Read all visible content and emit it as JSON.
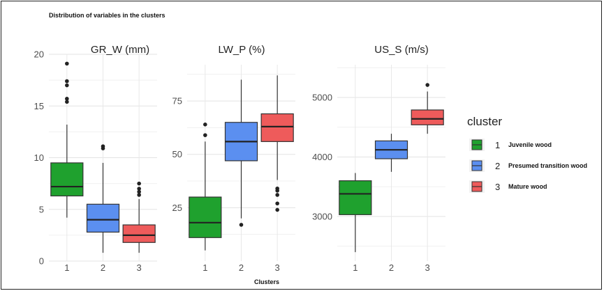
{
  "title": "Distribution of variables in the clusters",
  "xlabel": "Clusters",
  "legend": {
    "title": "cluster",
    "items": [
      {
        "id": "1",
        "name": "Juvenile wood",
        "color": "#1fa12e"
      },
      {
        "id": "2",
        "name": "Presumed transition wood",
        "color": "#5b8ff0"
      },
      {
        "id": "3",
        "name": "Mature wood",
        "color": "#ee5b5b"
      }
    ]
  },
  "chart_data": [
    {
      "type": "box",
      "title": "GR_W (mm)",
      "categories": [
        "1",
        "2",
        "3"
      ],
      "yticks": [
        0,
        5,
        10,
        15,
        20
      ],
      "ylim": [
        0,
        20
      ],
      "boxes": [
        {
          "q1": 6.3,
          "median": 7.2,
          "q3": 9.5,
          "lo": 4.2,
          "hi": 13.2,
          "outliers": [
            15.4,
            15.7,
            17.0,
            17.4,
            19.1
          ]
        },
        {
          "q1": 2.8,
          "median": 4.0,
          "q3": 5.5,
          "lo": 0.8,
          "hi": 9.5,
          "outliers": [
            10.9,
            11.1
          ]
        },
        {
          "q1": 1.8,
          "median": 2.5,
          "q3": 3.5,
          "lo": 0.8,
          "hi": 6.0,
          "outliers": [
            6.4,
            6.7,
            7.0,
            7.5
          ]
        }
      ]
    },
    {
      "type": "box",
      "title": "LW_P (%)",
      "categories": [
        "1",
        "2",
        "3"
      ],
      "yticks": [
        25,
        50,
        75
      ],
      "ylim": [
        0,
        92
      ],
      "boxes": [
        {
          "q1": 11,
          "median": 18,
          "q3": 30,
          "lo": 5,
          "hi": 56,
          "outliers": [
            59,
            64
          ]
        },
        {
          "q1": 47,
          "median": 56,
          "q3": 65,
          "lo": 20,
          "hi": 85,
          "outliers": [
            17
          ]
        },
        {
          "q1": 56,
          "median": 63,
          "q3": 69,
          "lo": 38,
          "hi": 87,
          "outliers": [
            24,
            27,
            31,
            33,
            34
          ]
        }
      ]
    },
    {
      "type": "box",
      "title": "US_S  (m/s)",
      "categories": [
        "1",
        "2",
        "3"
      ],
      "yticks": [
        3000,
        4000,
        5000
      ],
      "ylim": [
        2250,
        5550
      ],
      "boxes": [
        {
          "q1": 3030,
          "median": 3380,
          "q3": 3600,
          "lo": 2400,
          "hi": 3730,
          "outliers": []
        },
        {
          "q1": 3970,
          "median": 4120,
          "q3": 4270,
          "lo": 3750,
          "hi": 4390,
          "outliers": []
        },
        {
          "q1": 4540,
          "median": 4640,
          "q3": 4790,
          "lo": 4390,
          "hi": 5100,
          "outliers": [
            5210
          ]
        }
      ]
    }
  ]
}
